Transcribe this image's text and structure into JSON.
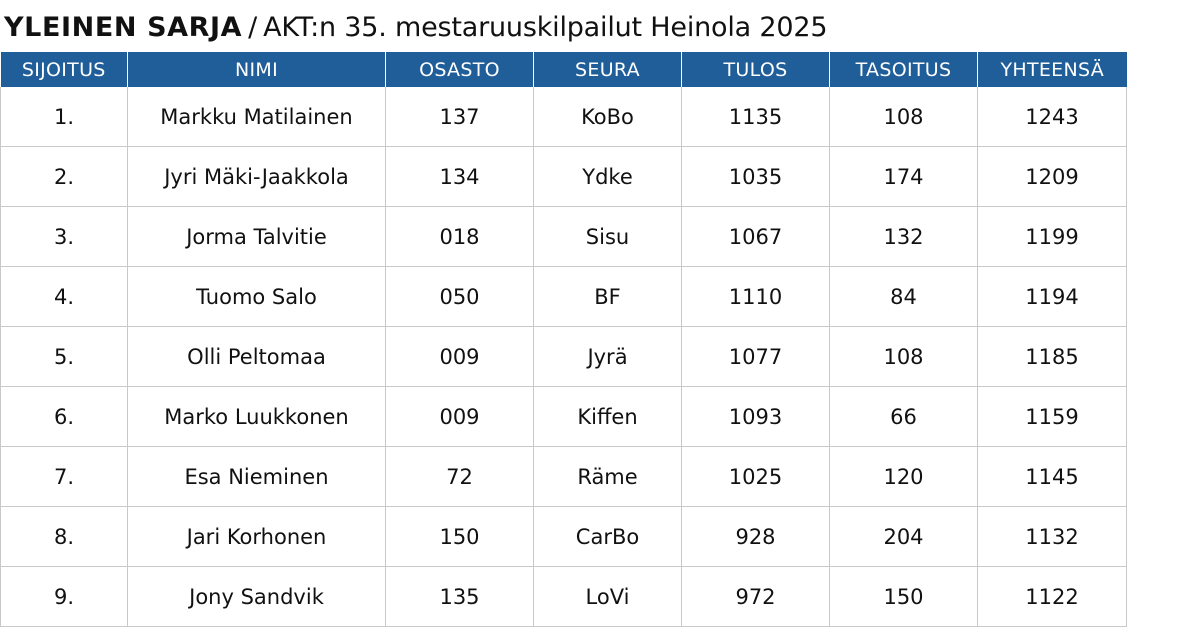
{
  "title": {
    "bold": "YLEINEN SARJA",
    "separator": "/",
    "rest": "AKT:n 35. mestaruuskilpailut Heinola 2025"
  },
  "colors": {
    "header_bg": "#1f5e99",
    "header_text": "#ffffff",
    "grid": "#c9c9c9"
  },
  "table": {
    "headers": [
      "SIJOITUS",
      "NIMI",
      "OSASTO",
      "SEURA",
      "TULOS",
      "TASOITUS",
      "YHTEENSÄ"
    ],
    "rows": [
      [
        "1.",
        "Markku Matilainen",
        "137",
        "KoBo",
        "1135",
        "108",
        "1243"
      ],
      [
        "2.",
        "Jyri Mäki-Jaakkola",
        "134",
        "Ydke",
        "1035",
        "174",
        "1209"
      ],
      [
        "3.",
        "Jorma Talvitie",
        "018",
        "Sisu",
        "1067",
        "132",
        "1199"
      ],
      [
        "4.",
        "Tuomo Salo",
        "050",
        "BF",
        "1110",
        "84",
        "1194"
      ],
      [
        "5.",
        "Olli Peltomaa",
        "009",
        "Jyrä",
        "1077",
        "108",
        "1185"
      ],
      [
        "6.",
        "Marko Luukkonen",
        "009",
        "Kiffen",
        "1093",
        "66",
        "1159"
      ],
      [
        "7.",
        "Esa Nieminen",
        "72",
        "Räme",
        "1025",
        "120",
        "1145"
      ],
      [
        "8.",
        "Jari Korhonen",
        "150",
        "CarBo",
        "928",
        "204",
        "1132"
      ],
      [
        "9.",
        "Jony Sandvik",
        "135",
        "LoVi",
        "972",
        "150",
        "1122"
      ]
    ]
  }
}
